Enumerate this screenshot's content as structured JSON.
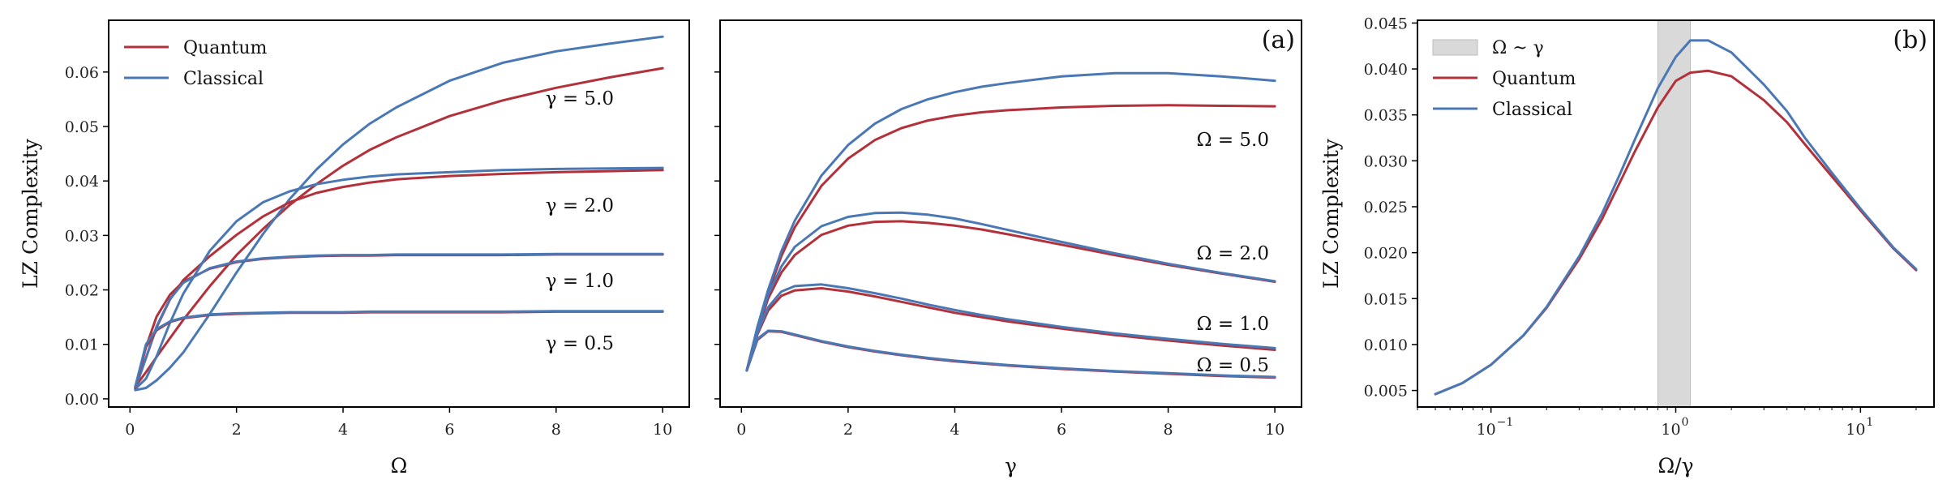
{
  "colors": {
    "quantum": "#b2313b",
    "classical": "#4a78b5",
    "band": "#d9d9d9"
  },
  "chart_data": [
    {
      "type": "line",
      "xlabel": "Ω",
      "ylabel": "LZ Complexity",
      "xlim": [
        -0.4,
        10.5
      ],
      "ylim": [
        -0.0015,
        0.0695
      ],
      "xticks": [
        0,
        2,
        4,
        6,
        8,
        10
      ],
      "yticks": [
        0.0,
        0.01,
        0.02,
        0.03,
        0.04,
        0.05,
        0.06
      ],
      "ytick_labels": [
        "0.00",
        "0.01",
        "0.02",
        "0.03",
        "0.04",
        "0.05",
        "0.06"
      ],
      "legend": {
        "position": "top-left",
        "entries": [
          "Quantum",
          "Classical"
        ]
      },
      "x": [
        0.1,
        0.3,
        0.5,
        0.75,
        1,
        1.5,
        2,
        2.5,
        3,
        3.5,
        4,
        4.5,
        5,
        6,
        7,
        8,
        9,
        10
      ],
      "series": [
        {
          "name": "Quantum",
          "group": "γ = 5.0",
          "values": [
            0.0022,
            0.0049,
            0.0077,
            0.0111,
            0.0145,
            0.0207,
            0.0264,
            0.0312,
            0.0356,
            0.0394,
            0.0428,
            0.0457,
            0.048,
            0.0519,
            0.0548,
            0.0571,
            0.059,
            0.0607
          ]
        },
        {
          "name": "Classical",
          "group": "γ = 5.0",
          "values": [
            0.0016,
            0.002,
            0.0034,
            0.0057,
            0.0085,
            0.0156,
            0.0232,
            0.0303,
            0.0367,
            0.0421,
            0.0467,
            0.0505,
            0.0535,
            0.0584,
            0.0617,
            0.0638,
            0.0652,
            0.0665
          ]
        },
        {
          "name": "Quantum",
          "group": "γ = 2.0",
          "values": [
            0.0022,
            0.0075,
            0.0131,
            0.0182,
            0.0218,
            0.0262,
            0.0301,
            0.0335,
            0.0361,
            0.0378,
            0.0389,
            0.0397,
            0.0403,
            0.0409,
            0.0413,
            0.0416,
            0.0418,
            0.042
          ]
        },
        {
          "name": "Classical",
          "group": "γ = 2.0",
          "values": [
            0.0018,
            0.0037,
            0.0078,
            0.0139,
            0.0193,
            0.0272,
            0.0326,
            0.0361,
            0.0381,
            0.0394,
            0.0402,
            0.0408,
            0.0412,
            0.0416,
            0.042,
            0.0422,
            0.0423,
            0.0424
          ]
        },
        {
          "name": "Quantum",
          "group": "γ = 1.0",
          "values": [
            0.0022,
            0.0095,
            0.0151,
            0.0191,
            0.0215,
            0.0239,
            0.0251,
            0.0257,
            0.026,
            0.0262,
            0.0263,
            0.0263,
            0.0264,
            0.0264,
            0.0264,
            0.0265,
            0.0265,
            0.0265
          ]
        },
        {
          "name": "Classical",
          "group": "γ = 1.0",
          "values": [
            0.0018,
            0.0075,
            0.0133,
            0.0183,
            0.0213,
            0.024,
            0.0252,
            0.0258,
            0.0261,
            0.0263,
            0.0264,
            0.0264,
            0.0265,
            0.0265,
            0.0265,
            0.0266,
            0.0266,
            0.0266
          ]
        },
        {
          "name": "Quantum",
          "group": "γ = 0.5",
          "values": [
            0.002,
            0.0095,
            0.0126,
            0.0141,
            0.0148,
            0.0154,
            0.0156,
            0.0157,
            0.0158,
            0.0158,
            0.0158,
            0.0159,
            0.0159,
            0.0159,
            0.0159,
            0.016,
            0.016,
            0.016
          ]
        },
        {
          "name": "Classical",
          "group": "γ = 0.5",
          "values": [
            0.0022,
            0.01,
            0.0128,
            0.0142,
            0.0149,
            0.0155,
            0.0157,
            0.0158,
            0.0159,
            0.0159,
            0.0159,
            0.016,
            0.016,
            0.016,
            0.016,
            0.0161,
            0.0161,
            0.0161
          ]
        }
      ],
      "annotations": [
        "γ = 5.0",
        "γ = 2.0",
        "γ = 1.0",
        "γ = 0.5"
      ]
    },
    {
      "type": "line",
      "panel_label": "(a)",
      "xlabel": "γ",
      "xlim": [
        -0.4,
        10.5
      ],
      "ylim": [
        -0.0015,
        0.0695
      ],
      "xticks": [
        0,
        2,
        4,
        6,
        8,
        10
      ],
      "x": [
        0.1,
        0.3,
        0.5,
        0.75,
        1,
        1.5,
        2,
        2.5,
        3,
        3.5,
        4,
        4.5,
        5,
        6,
        7,
        8,
        9,
        10
      ],
      "series": [
        {
          "name": "Quantum",
          "group": "Ω = 5.0",
          "values": [
            0.0052,
            0.0129,
            0.0195,
            0.0262,
            0.0315,
            0.0391,
            0.0441,
            0.0475,
            0.0497,
            0.0511,
            0.052,
            0.0526,
            0.053,
            0.0535,
            0.0538,
            0.0539,
            0.0538,
            0.0537
          ]
        },
        {
          "name": "Classical",
          "group": "Ω = 5.0",
          "values": [
            0.0052,
            0.0132,
            0.02,
            0.0271,
            0.0327,
            0.041,
            0.0466,
            0.0505,
            0.0532,
            0.055,
            0.0563,
            0.0573,
            0.058,
            0.0592,
            0.0598,
            0.0598,
            0.0592,
            0.0584
          ]
        },
        {
          "name": "Quantum",
          "group": "Ω = 2.0",
          "values": [
            0.0052,
            0.0125,
            0.0184,
            0.0232,
            0.0264,
            0.0301,
            0.0318,
            0.0325,
            0.0326,
            0.0323,
            0.0318,
            0.0311,
            0.0302,
            0.0283,
            0.0264,
            0.0246,
            0.023,
            0.0215
          ]
        },
        {
          "name": "Classical",
          "group": "Ω = 2.0",
          "values": [
            0.0052,
            0.0128,
            0.0191,
            0.0243,
            0.0279,
            0.0317,
            0.0334,
            0.0341,
            0.0342,
            0.0338,
            0.0331,
            0.0321,
            0.031,
            0.0288,
            0.0267,
            0.0248,
            0.0231,
            0.0216
          ]
        },
        {
          "name": "Quantum",
          "group": "Ω = 1.0",
          "values": [
            0.0052,
            0.0118,
            0.0162,
            0.0189,
            0.0199,
            0.0203,
            0.0197,
            0.0188,
            0.0178,
            0.0168,
            0.0158,
            0.015,
            0.0142,
            0.0129,
            0.0117,
            0.0107,
            0.0098,
            0.009
          ]
        },
        {
          "name": "Classical",
          "group": "Ω = 1.0",
          "values": [
            0.0052,
            0.0121,
            0.0168,
            0.0197,
            0.0207,
            0.021,
            0.0203,
            0.0194,
            0.0184,
            0.0173,
            0.0163,
            0.0154,
            0.0146,
            0.0132,
            0.012,
            0.011,
            0.0101,
            0.0093
          ]
        },
        {
          "name": "Quantum",
          "group": "Ω = 0.5",
          "values": [
            0.0052,
            0.0108,
            0.0124,
            0.0123,
            0.0117,
            0.0105,
            0.0095,
            0.0087,
            0.008,
            0.0074,
            0.0069,
            0.0065,
            0.0061,
            0.0055,
            0.005,
            0.0046,
            0.0042,
            0.0039
          ]
        },
        {
          "name": "Classical",
          "group": "Ω = 0.5",
          "values": [
            0.0052,
            0.011,
            0.0125,
            0.0124,
            0.0118,
            0.0106,
            0.0096,
            0.0088,
            0.0081,
            0.0075,
            0.007,
            0.0066,
            0.0062,
            0.0056,
            0.0051,
            0.0047,
            0.0043,
            0.004
          ]
        }
      ],
      "annotations": [
        "Ω = 5.0",
        "Ω = 2.0",
        "Ω = 1.0",
        "Ω = 0.5"
      ]
    },
    {
      "type": "line",
      "panel_label": "(b)",
      "xscale": "log",
      "xlabel": "Ω/γ",
      "ylabel": "LZ Complexity",
      "xlim": [
        0.04,
        25
      ],
      "ylim": [
        0.0032,
        0.0453
      ],
      "xticks": [
        0.1,
        1,
        10
      ],
      "xtick_labels": [
        "10",
        "10",
        "10"
      ],
      "xtick_exponents": [
        "−1",
        "0",
        "1"
      ],
      "yticks": [
        0.005,
        0.01,
        0.015,
        0.02,
        0.025,
        0.03,
        0.035,
        0.04,
        0.045
      ],
      "ytick_labels": [
        "0.005",
        "0.010",
        "0.015",
        "0.020",
        "0.025",
        "0.030",
        "0.035",
        "0.040",
        "0.045"
      ],
      "shaded_region": {
        "label": "Ω ~ γ",
        "x": [
          0.8,
          1.2
        ]
      },
      "legend": {
        "position": "top-left",
        "entries": [
          "Ω ~ γ",
          "Quantum",
          "Classical"
        ]
      },
      "x": [
        0.05,
        0.07,
        0.1,
        0.15,
        0.2,
        0.3,
        0.4,
        0.5,
        0.6,
        0.8,
        1,
        1.2,
        1.5,
        2,
        3,
        4,
        5,
        7,
        10,
        15,
        20
      ],
      "series": [
        {
          "name": "Quantum",
          "values": [
            0.0046,
            0.0058,
            0.0078,
            0.011,
            0.014,
            0.0193,
            0.0237,
            0.0277,
            0.031,
            0.0358,
            0.0387,
            0.0396,
            0.0398,
            0.0392,
            0.0366,
            0.0342,
            0.0318,
            0.0283,
            0.0246,
            0.0205,
            0.0181
          ]
        },
        {
          "name": "Classical",
          "values": [
            0.0046,
            0.0058,
            0.0078,
            0.011,
            0.0141,
            0.0196,
            0.0243,
            0.0286,
            0.0323,
            0.0379,
            0.0413,
            0.0431,
            0.0431,
            0.0418,
            0.0383,
            0.0354,
            0.0325,
            0.0287,
            0.0248,
            0.0206,
            0.0182
          ]
        }
      ]
    }
  ]
}
